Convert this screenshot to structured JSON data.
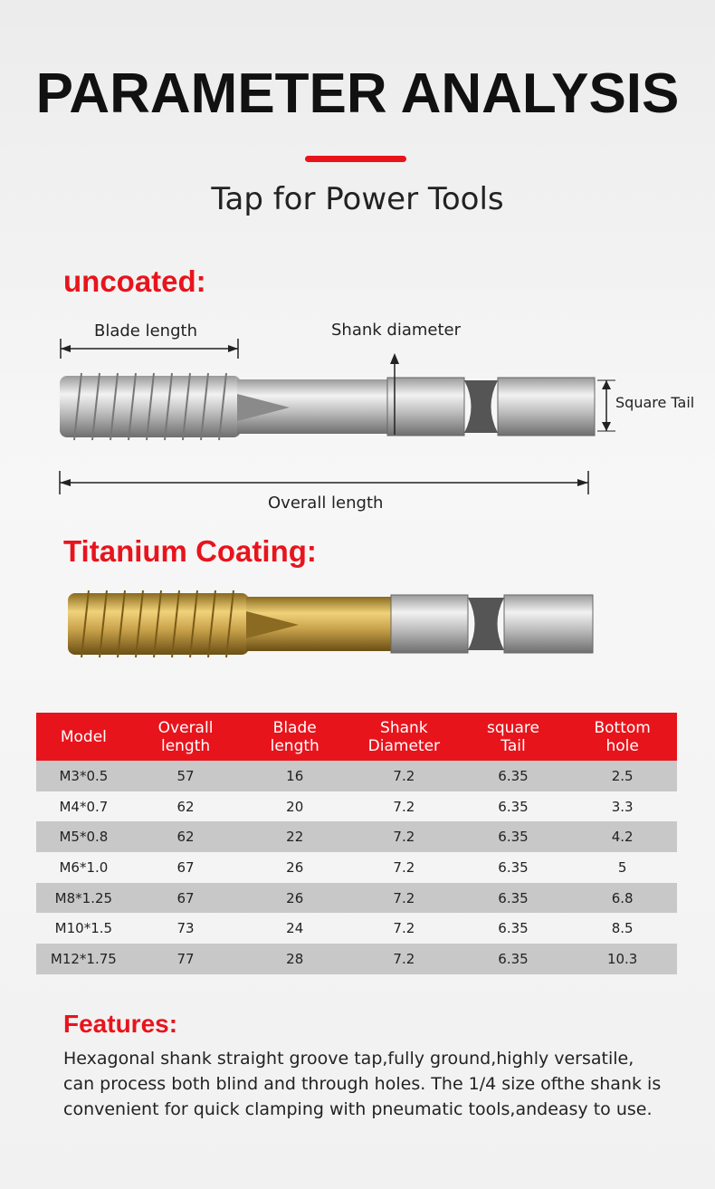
{
  "header": {
    "title": "PARAMETER ANALYSIS",
    "subtitle": "Tap for Power Tools"
  },
  "uncoated": {
    "heading": "uncoated:",
    "labels": {
      "blade_length": "Blade length",
      "shank_diameter": "Shank diameter",
      "square_tail": "Square Tail",
      "overall_length": "Overall length"
    }
  },
  "titanium": {
    "heading": "Titanium Coating:"
  },
  "table": {
    "header": [
      "Model",
      "Overall length",
      "Blade length",
      "Shank Diameter",
      "square Tail",
      "Bottom hole"
    ],
    "rows": [
      [
        "M3*0.5",
        "57",
        "16",
        "7.2",
        "6.35",
        "2.5"
      ],
      [
        "M4*0.7",
        "62",
        "20",
        "7.2",
        "6.35",
        "3.3"
      ],
      [
        "M5*0.8",
        "62",
        "22",
        "7.2",
        "6.35",
        "4.2"
      ],
      [
        "M6*1.0",
        "67",
        "26",
        "7.2",
        "6.35",
        "5"
      ],
      [
        "M8*1.25",
        "67",
        "26",
        "7.2",
        "6.35",
        "6.8"
      ],
      [
        "M10*1.5",
        "73",
        "24",
        "7.2",
        "6.35",
        "8.5"
      ],
      [
        "M12*1.75",
        "77",
        "28",
        "7.2",
        "6.35",
        "10.3"
      ]
    ]
  },
  "features": {
    "heading": "Features:",
    "lines": [
      "Hexagonal shank straight groove tap,fully ground,highly versatile,",
      "can process both blind and through holes. The 1/4 size ofthe shank is",
      "convenient for quick clamping with pneumatic tools,andeasy to use."
    ]
  }
}
